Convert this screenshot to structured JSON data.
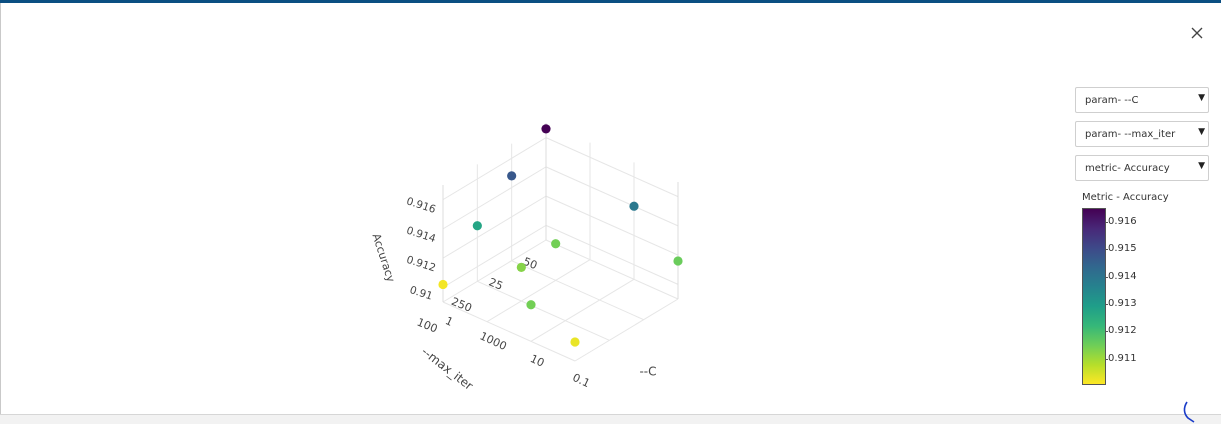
{
  "close_label": "×",
  "dropdowns": {
    "x": {
      "label": "param- --C"
    },
    "y": {
      "label": "param- --max_iter"
    },
    "z": {
      "label": "metric- Accuracy"
    }
  },
  "colorbar": {
    "title": "Metric - Accuracy",
    "ticks": [
      "0.916",
      "0.915",
      "0.914",
      "0.913",
      "0.912",
      "0.911"
    ],
    "range": [
      0.9101,
      0.9166
    ],
    "colorscale": [
      "#fde725",
      "#b5de2b",
      "#6ece58",
      "#35b779",
      "#1f9e89",
      "#26828e",
      "#31688e",
      "#3e4989",
      "#482878",
      "#440154"
    ]
  },
  "chart_data": {
    "type": "scatter3d",
    "xlabel": "--C",
    "ylabel": "--max_iter",
    "zlabel": "Accuracy",
    "x_ticks": [
      "1",
      "1000",
      "10",
      "0.1"
    ],
    "y_ticks": [
      "50",
      "25",
      "250",
      "100"
    ],
    "z_ticks": [
      "0.916",
      "0.914",
      "0.912",
      "0.91"
    ],
    "points": [
      {
        "C": "0.1",
        "max_iter": "50",
        "accuracy": 0.9166
      },
      {
        "C": "0.1",
        "max_iter": "25",
        "accuracy": 0.9148
      },
      {
        "C": "0.1",
        "max_iter": "250",
        "accuracy": 0.9128
      },
      {
        "C": "0.1",
        "max_iter": "100",
        "accuracy": 0.9102
      },
      {
        "C": "1000",
        "max_iter": "50",
        "accuracy": 0.914
      },
      {
        "C": "10",
        "max_iter": "25",
        "accuracy": 0.9115
      },
      {
        "C": "1000",
        "max_iter": "100",
        "accuracy": 0.9115
      },
      {
        "C": "1",
        "max_iter": "50",
        "accuracy": 0.9116
      },
      {
        "C": "1",
        "max_iter": "100",
        "accuracy": 0.9103
      },
      {
        "C": "10",
        "max_iter": "250",
        "accuracy": 0.9113
      }
    ]
  }
}
